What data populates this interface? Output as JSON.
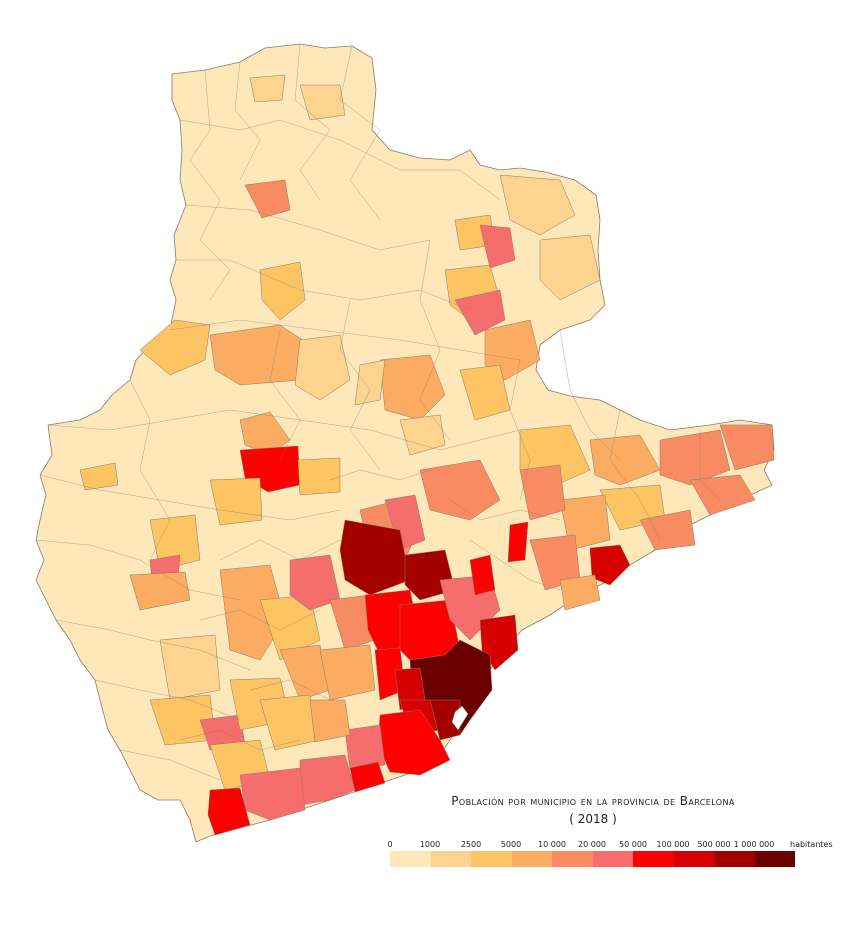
{
  "title": "Población por municipio en la provincia de Barcelona",
  "subtitle": "( 2018 )",
  "legend": {
    "unit": "habitantes",
    "breaks": [
      "0",
      "1000",
      "2500",
      "5000",
      "10 000",
      "20 000",
      "50 000",
      "100 000",
      "500 000",
      "1 000 000"
    ],
    "colors": [
      "#fee8b9",
      "#fdd48f",
      "#fdc463",
      "#fbab62",
      "#f98b62",
      "#f56d6d",
      "#fd0000",
      "#d70000",
      "#a40000",
      "#6b0000"
    ]
  },
  "colors": {
    "background": "#ffffff",
    "border": "#8a7a6a"
  }
}
